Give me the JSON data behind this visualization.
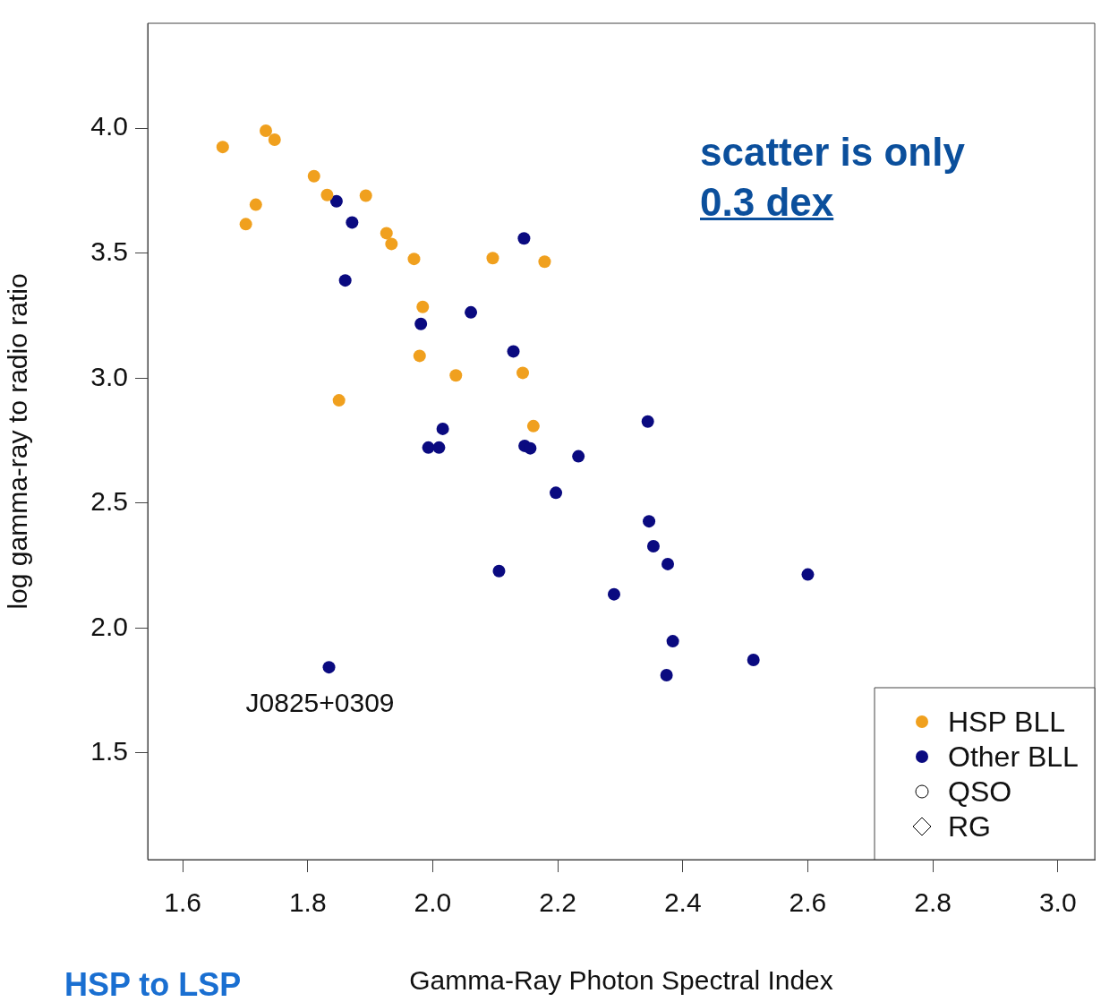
{
  "chart_data": {
    "type": "scatter",
    "xlabel": "Gamma-Ray Photon Spectral Index",
    "ylabel": "log gamma-ray to radio ratio",
    "xlim": [
      1.544,
      3.059
    ],
    "ylim": [
      1.073,
      4.42
    ],
    "xticks": [
      1.6,
      1.8,
      {
        "value": 2,
        "label": "2.0"
      },
      2.2,
      2.4,
      2.6,
      2.8,
      {
        "value": 3,
        "label": "3.0"
      }
    ],
    "yticks": [
      1.5,
      {
        "value": 2,
        "label": "2.0"
      },
      2.5,
      {
        "value": 3,
        "label": "3.0"
      },
      3.5,
      {
        "value": 4,
        "label": "4.0"
      }
    ],
    "grid": false,
    "legend": "bottom right",
    "marker": "circle",
    "series": [
      {
        "name": "HSP BLL",
        "color": "#f0a01e",
        "x": [
          1.664,
          1.733,
          1.747,
          1.701,
          1.717,
          1.81,
          1.831,
          1.893,
          1.926,
          1.934,
          1.97,
          1.984,
          1.979,
          1.85,
          2.037,
          2.096,
          2.179,
          2.144,
          2.161
        ],
        "values": [
          3.925,
          3.99,
          3.954,
          3.616,
          3.694,
          3.808,
          3.733,
          3.73,
          3.58,
          3.537,
          3.477,
          3.285,
          3.089,
          2.911,
          3.011,
          3.48,
          3.466,
          3.021,
          2.808
        ]
      },
      {
        "name": "Other BLL",
        "color": "#0a0a80",
        "x": [
          1.846,
          1.871,
          1.86,
          2.146,
          2.061,
          1.981,
          2.129,
          2.016,
          1.993,
          2.01,
          2.147,
          2.156,
          2.233,
          2.344,
          2.197,
          2.346,
          2.353,
          2.376,
          2.106,
          2.29,
          2.6,
          2.384,
          2.374,
          2.513,
          1.834
        ],
        "values": [
          3.708,
          3.623,
          3.391,
          3.559,
          3.263,
          3.217,
          3.107,
          2.797,
          2.722,
          2.722,
          2.729,
          2.719,
          2.687,
          2.826,
          2.541,
          2.427,
          2.327,
          2.256,
          2.228,
          2.135,
          2.214,
          1.947,
          1.811,
          1.872,
          1.843
        ]
      },
      {
        "name": "QSO",
        "color": "#000000",
        "marker": "circle"
      },
      {
        "name": "RG",
        "color": "#000000",
        "marker": "diamond"
      }
    ],
    "annotations": [
      {
        "text": "J0825+0309",
        "x": 1.834,
        "y": 1.843
      },
      "scatter is only",
      "0.3 dex",
      "HSP to LSP"
    ]
  }
}
